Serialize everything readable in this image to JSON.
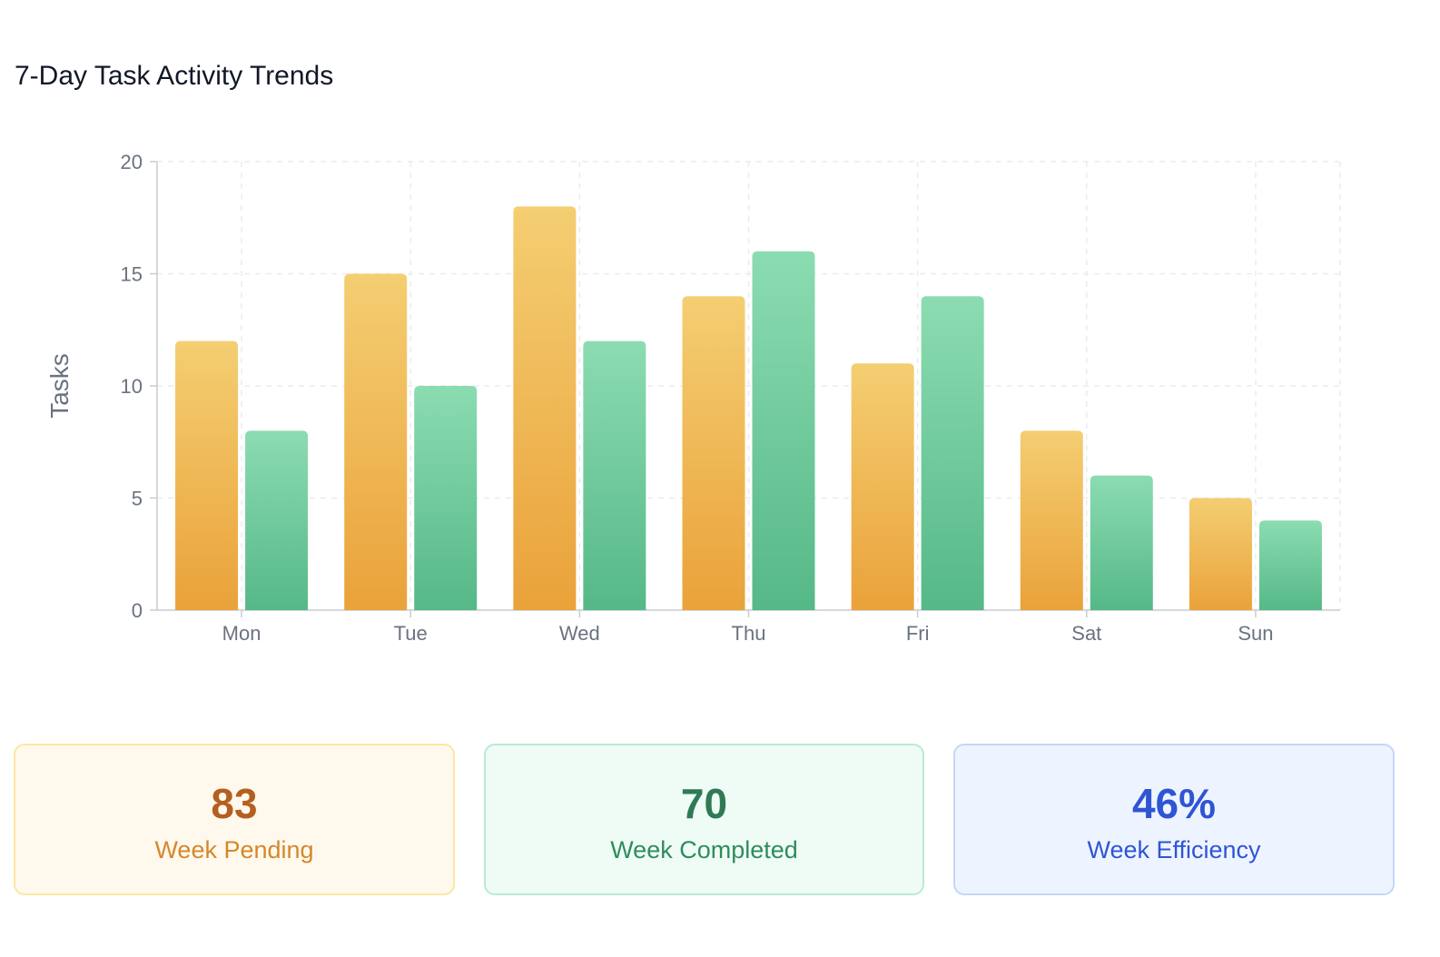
{
  "title": "7-Day Task Activity Trends",
  "chart_data": {
    "type": "bar",
    "categories": [
      "Mon",
      "Tue",
      "Wed",
      "Thu",
      "Fri",
      "Sat",
      "Sun"
    ],
    "series": [
      {
        "name": "",
        "color": "#f0b23f",
        "values": [
          12,
          15,
          18,
          14,
          11,
          8,
          5
        ]
      },
      {
        "name": "",
        "color": "#5cbf8c",
        "values": [
          8,
          10,
          12,
          16,
          14,
          6,
          4
        ]
      }
    ],
    "title": "",
    "xlabel": "",
    "ylabel": "Tasks",
    "ylim": [
      0,
      20
    ],
    "yticks": [
      0,
      5,
      10,
      15,
      20
    ],
    "grid": true,
    "legend": "none"
  },
  "stats": [
    {
      "value": "83",
      "label": "Week Pending",
      "value_color": "#b45f20",
      "label_color": "#d5872c"
    },
    {
      "value": "70",
      "label": "Week Completed",
      "value_color": "#2f7a55",
      "label_color": "#2f8c5d"
    },
    {
      "value": "46%",
      "label": "Week Efficiency",
      "value_color": "#2f55d4",
      "label_color": "#2f55d4"
    }
  ]
}
